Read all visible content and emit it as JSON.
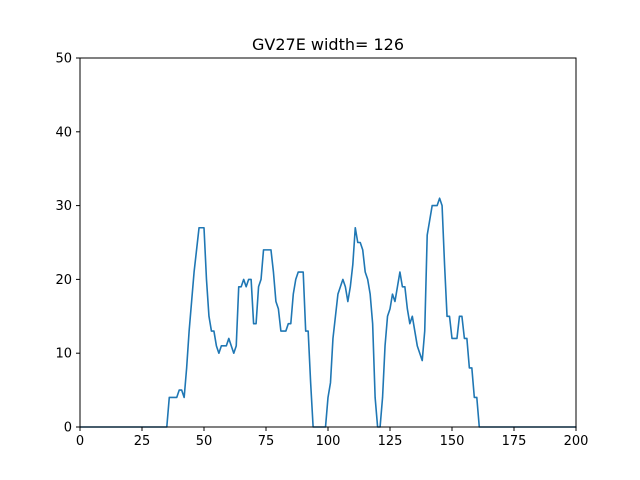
{
  "chart_data": {
    "type": "line",
    "title": "GV27E width= 126",
    "xlabel": "",
    "ylabel": "",
    "xlim": [
      0,
      200
    ],
    "ylim": [
      0,
      50
    ],
    "x_ticks": [
      0,
      25,
      50,
      75,
      100,
      125,
      150,
      175,
      200
    ],
    "y_ticks": [
      0,
      10,
      20,
      30,
      40,
      50
    ],
    "grid": false,
    "series": [
      {
        "color": "#1f77b4",
        "points": [
          [
            0,
            0
          ],
          [
            35,
            0
          ],
          [
            36,
            4
          ],
          [
            39,
            4
          ],
          [
            40,
            5
          ],
          [
            41,
            5
          ],
          [
            42,
            4
          ],
          [
            43,
            8
          ],
          [
            44,
            13
          ],
          [
            45,
            17
          ],
          [
            46,
            21
          ],
          [
            47,
            24
          ],
          [
            48,
            27
          ],
          [
            49,
            27
          ],
          [
            50,
            27
          ],
          [
            51,
            20
          ],
          [
            52,
            15
          ],
          [
            53,
            13
          ],
          [
            54,
            13
          ],
          [
            55,
            11
          ],
          [
            56,
            10
          ],
          [
            57,
            11
          ],
          [
            58,
            11
          ],
          [
            59,
            11
          ],
          [
            60,
            12
          ],
          [
            61,
            11
          ],
          [
            62,
            10
          ],
          [
            63,
            11
          ],
          [
            64,
            19
          ],
          [
            65,
            19
          ],
          [
            66,
            20
          ],
          [
            67,
            19
          ],
          [
            68,
            20
          ],
          [
            69,
            20
          ],
          [
            70,
            14
          ],
          [
            71,
            14
          ],
          [
            72,
            19
          ],
          [
            73,
            20
          ],
          [
            74,
            24
          ],
          [
            75,
            24
          ],
          [
            76,
            24
          ],
          [
            77,
            24
          ],
          [
            78,
            21
          ],
          [
            79,
            17
          ],
          [
            80,
            16
          ],
          [
            81,
            13
          ],
          [
            82,
            13
          ],
          [
            83,
            13
          ],
          [
            84,
            14
          ],
          [
            85,
            14
          ],
          [
            86,
            18
          ],
          [
            87,
            20
          ],
          [
            88,
            21
          ],
          [
            89,
            21
          ],
          [
            90,
            21
          ],
          [
            91,
            13
          ],
          [
            92,
            13
          ],
          [
            93,
            6
          ],
          [
            94,
            0
          ],
          [
            99,
            0
          ],
          [
            100,
            4
          ],
          [
            101,
            6
          ],
          [
            102,
            12
          ],
          [
            103,
            15
          ],
          [
            104,
            18
          ],
          [
            105,
            19
          ],
          [
            106,
            20
          ],
          [
            107,
            19
          ],
          [
            108,
            17
          ],
          [
            109,
            19
          ],
          [
            110,
            22
          ],
          [
            111,
            27
          ],
          [
            112,
            25
          ],
          [
            113,
            25
          ],
          [
            114,
            24
          ],
          [
            115,
            21
          ],
          [
            116,
            20
          ],
          [
            117,
            18
          ],
          [
            118,
            14
          ],
          [
            119,
            4
          ],
          [
            120,
            0
          ],
          [
            121,
            0
          ],
          [
            122,
            4
          ],
          [
            123,
            11
          ],
          [
            124,
            15
          ],
          [
            125,
            16
          ],
          [
            126,
            18
          ],
          [
            127,
            17
          ],
          [
            128,
            19
          ],
          [
            129,
            21
          ],
          [
            130,
            19
          ],
          [
            131,
            19
          ],
          [
            132,
            16
          ],
          [
            133,
            14
          ],
          [
            134,
            15
          ],
          [
            135,
            13
          ],
          [
            136,
            11
          ],
          [
            137,
            10
          ],
          [
            138,
            9
          ],
          [
            139,
            13
          ],
          [
            140,
            26
          ],
          [
            141,
            28
          ],
          [
            142,
            30
          ],
          [
            143,
            30
          ],
          [
            144,
            30
          ],
          [
            145,
            31
          ],
          [
            146,
            30
          ],
          [
            147,
            22
          ],
          [
            148,
            15
          ],
          [
            149,
            15
          ],
          [
            150,
            12
          ],
          [
            151,
            12
          ],
          [
            152,
            12
          ],
          [
            153,
            15
          ],
          [
            154,
            15
          ],
          [
            155,
            12
          ],
          [
            156,
            12
          ],
          [
            157,
            8
          ],
          [
            158,
            8
          ],
          [
            159,
            4
          ],
          [
            160,
            4
          ],
          [
            161,
            0
          ],
          [
            200,
            0
          ]
        ]
      }
    ]
  }
}
